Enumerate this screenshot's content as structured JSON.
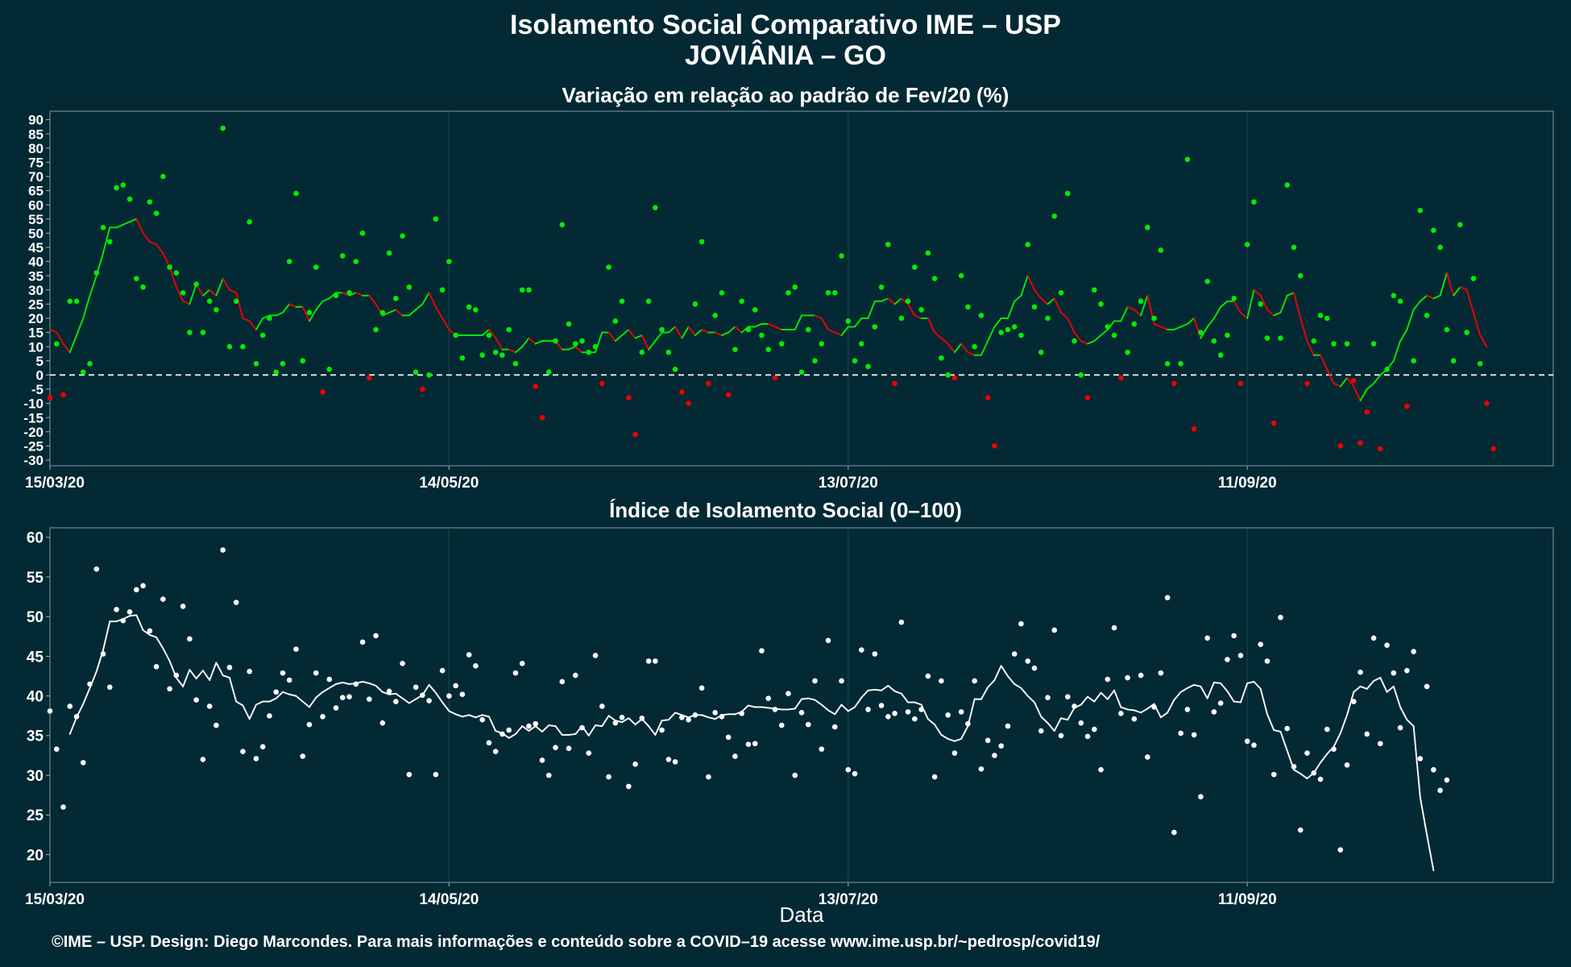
{
  "header": {
    "title": "Isolamento Social Comparativo IME – USP",
    "location": "JOVIÂNIA – GO"
  },
  "xlabel": "Data",
  "credit": "©IME – USP. Design: Diego Marcondes. Para mais informações e conteúdo sobre a COVID–19 acesse www.ime.usp.br/~pedrosp/covid19/",
  "colors": {
    "background": "#032934",
    "positive": "#00ee00",
    "negative": "#ee0000",
    "index": "#ffffff",
    "zero_line": "#ffffff"
  },
  "chart_data": [
    {
      "type": "scatter",
      "title": "Variação em relação ao padrão de Fev/20 (%)",
      "x_start": "15/03/20",
      "x_tick_labels": [
        "15/03/20",
        "14/05/20",
        "13/07/20",
        "11/09/20"
      ],
      "ylim": [
        -32,
        93
      ],
      "y_ticks": [
        -30,
        -25,
        -20,
        -15,
        -10,
        -5,
        0,
        5,
        10,
        15,
        20,
        25,
        30,
        35,
        40,
        45,
        50,
        55,
        60,
        65,
        70,
        75,
        80,
        85,
        90
      ],
      "reference_line": 0,
      "series": [
        {
          "kind": "points",
          "values": [
            -8,
            11,
            -7,
            26,
            26,
            1,
            4,
            36,
            52,
            47,
            66,
            67,
            62,
            34,
            31,
            61,
            57,
            70,
            38,
            36,
            29,
            15,
            32,
            15,
            26,
            23,
            87,
            10,
            26,
            10,
            54,
            4,
            14,
            20,
            1,
            4,
            40,
            64,
            5,
            22,
            38,
            -6,
            2,
            28,
            42,
            29,
            40,
            50,
            -1,
            16,
            22,
            43,
            27,
            49,
            31,
            1,
            -5,
            0,
            55,
            30,
            40,
            14,
            6,
            24,
            23,
            7,
            14,
            8,
            7,
            16,
            4,
            30,
            30,
            -4,
            -15,
            1,
            12,
            53,
            18,
            11,
            12,
            8,
            10,
            -3,
            38,
            19,
            26,
            -8,
            -21,
            8,
            26,
            59,
            16,
            8,
            2,
            -6,
            -10,
            25,
            47,
            -3,
            21,
            29,
            -7,
            9,
            26,
            16,
            23,
            14,
            9,
            -1,
            11,
            29,
            31,
            1,
            16,
            5,
            11,
            29,
            29,
            42,
            19,
            5,
            11,
            3,
            17,
            31,
            46,
            -3,
            20,
            26,
            38,
            23,
            43,
            34,
            6,
            0,
            -1,
            35,
            24,
            10,
            21,
            -8,
            -25,
            15,
            16,
            17,
            14,
            46,
            24,
            8,
            20,
            56,
            29,
            64,
            12,
            0,
            -8,
            30,
            25,
            17,
            14,
            -1,
            8,
            18,
            26,
            52,
            20,
            44,
            4,
            -3,
            4,
            76,
            -19,
            15,
            33,
            12,
            7,
            14,
            27,
            -3,
            46,
            61,
            25,
            13,
            -17,
            13,
            67,
            45,
            35,
            -3,
            12,
            21,
            20,
            11,
            -25,
            11,
            -2,
            -24,
            -13,
            11,
            -26,
            2,
            28,
            26,
            -11,
            5,
            58,
            21,
            51,
            45,
            16,
            5,
            53,
            15,
            34,
            4,
            -10,
            -26
          ]
        },
        {
          "kind": "line",
          "values": [
            16,
            15,
            11,
            8,
            14,
            20,
            28,
            35,
            43,
            52,
            52,
            53,
            54,
            55,
            50,
            47,
            46,
            43,
            38,
            31,
            26,
            25,
            32,
            28,
            30,
            28,
            34,
            30,
            29,
            20,
            19,
            16,
            20,
            21,
            21,
            22,
            25,
            24,
            24,
            19,
            23,
            26,
            27,
            29,
            29,
            28,
            29,
            28,
            28,
            25,
            21,
            22,
            23,
            21,
            21,
            23,
            25,
            29,
            24,
            20,
            16,
            14,
            14,
            14,
            14,
            14,
            16,
            13,
            9,
            9,
            8,
            10,
            13,
            11,
            12,
            12,
            12,
            9,
            9,
            10,
            8,
            8,
            8,
            15,
            15,
            12,
            14,
            16,
            13,
            14,
            9,
            12,
            15,
            15,
            17,
            13,
            17,
            14,
            16,
            15,
            15,
            14,
            15,
            17,
            15,
            17,
            17,
            18,
            18,
            17,
            16,
            16,
            16,
            21,
            21,
            21,
            20,
            16,
            15,
            14,
            17,
            17,
            20,
            20,
            26,
            26,
            27,
            25,
            27,
            25,
            21,
            20,
            20,
            15,
            13,
            11,
            8,
            11,
            8,
            7,
            7,
            12,
            17,
            20,
            20,
            26,
            28,
            35,
            30,
            27,
            25,
            27,
            22,
            20,
            15,
            12,
            11,
            12,
            14,
            16,
            19,
            19,
            24,
            23,
            21,
            28,
            18,
            17,
            16,
            16,
            17,
            18,
            20,
            13,
            17,
            20,
            24,
            26,
            26,
            22,
            20,
            30,
            28,
            23,
            21,
            22,
            28,
            29,
            20,
            12,
            7,
            7,
            2,
            -3,
            -4,
            -1,
            -4,
            -9,
            -5,
            -3,
            0,
            2,
            5,
            12,
            16,
            23,
            26,
            28,
            27,
            28,
            36,
            28,
            31,
            30,
            22,
            14,
            10
          ]
        }
      ]
    },
    {
      "type": "scatter",
      "title": "Índice de Isolamento Social (0–100)",
      "x_start": "15/03/20",
      "x_tick_labels": [
        "15/03/20",
        "14/05/20",
        "13/07/20",
        "11/09/20"
      ],
      "ylim": [
        16.5,
        61.2
      ],
      "y_ticks": [
        20,
        25,
        30,
        35,
        40,
        45,
        50,
        55,
        60
      ],
      "series": [
        {
          "kind": "points",
          "values": [
            38.1,
            33.3,
            26.0,
            38.7,
            37.4,
            31.6,
            41.5,
            56.0,
            45.3,
            41.1,
            50.9,
            49.5,
            50.6,
            53.4,
            53.9,
            48.2,
            43.7,
            52.2,
            40.9,
            42.6,
            51.3,
            47.2,
            39.5,
            32.0,
            38.7,
            36.3,
            58.4,
            43.6,
            51.8,
            33.0,
            43.1,
            32.1,
            33.6,
            37.5,
            40.5,
            42.9,
            42.0,
            45.9,
            32.4,
            36.4,
            42.9,
            37.4,
            42.1,
            38.5,
            39.8,
            39.9,
            41.5,
            46.8,
            39.6,
            47.6,
            36.6,
            40.6,
            39.3,
            44.1,
            30.1,
            41.1,
            40.1,
            39.4,
            30.1,
            43.2,
            40.0,
            41.3,
            40.2,
            45.2,
            43.8,
            37.0,
            34.1,
            33.0,
            35.2,
            35.7,
            42.9,
            44.1,
            36.2,
            36.5,
            31.9,
            30.0,
            33.5,
            41.8,
            33.4,
            42.6,
            36.0,
            32.8,
            45.1,
            38.7,
            29.8,
            36.6,
            37.3,
            28.6,
            31.4,
            37.2,
            44.4,
            44.4,
            35.7,
            32.0,
            31.7,
            37.3,
            37.0,
            37.6,
            41.0,
            29.8,
            37.9,
            37.4,
            34.8,
            32.4,
            37.8,
            33.9,
            34.0,
            45.7,
            39.7,
            38.3,
            36.3,
            40.3,
            30.0,
            37.9,
            36.4,
            41.9,
            33.3,
            47.0,
            36.1,
            41.9,
            30.7,
            30.2,
            45.8,
            38.3,
            45.3,
            38.8,
            37.4,
            37.8,
            49.3,
            38.0,
            37.1,
            38.3,
            42.5,
            29.8,
            41.9,
            37.6,
            32.8,
            38.0,
            36.5,
            41.9,
            30.8,
            34.4,
            32.5,
            33.7,
            36.2,
            45.3,
            49.1,
            44.4,
            43.5,
            35.6,
            39.8,
            48.3,
            35.0,
            39.9,
            38.7,
            36.6,
            34.9,
            35.8,
            30.7,
            42.1,
            48.6,
            37.8,
            42.3,
            37.1,
            42.6,
            32.3,
            38.6,
            42.9,
            52.4,
            22.8,
            35.3,
            38.3,
            35.1,
            27.3,
            47.3,
            38.0,
            39.1,
            44.6,
            47.6,
            45.1,
            34.3,
            33.8,
            46.5,
            44.4,
            30.1,
            49.9,
            35.9,
            31.1,
            23.1,
            32.8,
            30.3,
            29.5,
            35.8,
            33.3,
            20.6,
            31.3,
            39.3,
            43.0,
            35.2,
            47.3,
            34.0,
            46.4,
            42.9,
            36.0,
            43.2,
            45.6,
            32.1,
            41.2,
            30.7,
            28.1,
            29.4
          ]
        },
        {
          "kind": "line",
          "values": [
            null,
            null,
            null,
            35.2,
            37.3,
            39.0,
            41.0,
            43.1,
            45.8,
            49.4,
            49.4,
            49.7,
            50.1,
            50.2,
            48.3,
            47.7,
            47.4,
            46.0,
            44.4,
            42.3,
            41.2,
            43.3,
            42.2,
            43.2,
            42.0,
            44.2,
            42.6,
            42.3,
            39.3,
            38.8,
            37.1,
            38.9,
            39.3,
            39.3,
            39.7,
            40.5,
            40.2,
            40.0,
            39.3,
            38.6,
            39.8,
            40.5,
            41.0,
            41.5,
            41.7,
            41.5,
            41.6,
            41.8,
            41.6,
            41.3,
            40.5,
            40.2,
            40.3,
            39.7,
            39.1,
            39.6,
            40.1,
            41.4,
            40.4,
            39.2,
            38.1,
            37.7,
            37.4,
            37.6,
            37.3,
            37.6,
            37.4,
            35.6,
            35.3,
            34.7,
            35.2,
            36.2,
            35.6,
            36.2,
            35.5,
            36.3,
            36.2,
            35.1,
            35.1,
            35.2,
            36.2,
            35.0,
            36.3,
            36.2,
            37.5,
            36.9,
            36.7,
            37.2,
            36.4,
            37.1,
            36.2,
            35.1,
            36.9,
            37.0,
            37.9,
            37.6,
            37.3,
            37.6,
            37.6,
            37.3,
            37.1,
            37.6,
            37.7,
            37.7,
            38.0,
            38.8,
            38.6,
            38.6,
            38.5,
            38.4,
            38.3,
            38.3,
            38.4,
            39.6,
            39.7,
            39.5,
            38.9,
            38.2,
            37.7,
            38.9,
            38.1,
            38.6,
            39.8,
            40.7,
            40.8,
            40.7,
            41.3,
            40.6,
            40.3,
            39.2,
            39.2,
            38.9,
            37.1,
            36.4,
            35.1,
            34.6,
            34.3,
            34.6,
            36.2,
            39.6,
            39.6,
            41.1,
            42.0,
            43.8,
            42.5,
            41.5,
            41.0,
            40.0,
            39.2,
            37.4,
            36.6,
            35.6,
            37.2,
            37.0,
            38.5,
            38.9,
            39.9,
            39.3,
            40.4,
            39.6,
            40.7,
            38.6,
            38.3,
            38.2,
            37.9,
            38.4,
            39.0,
            37.3,
            37.9,
            39.5,
            40.5,
            41.0,
            41.4,
            41.2,
            39.7,
            41.7,
            41.6,
            40.6,
            39.3,
            39.2,
            41.6,
            41.8,
            40.9,
            37.7,
            35.7,
            35.5,
            33.1,
            30.7,
            30.2,
            29.6,
            30.3,
            31.6,
            32.7,
            33.6,
            35.3,
            37.6,
            40.5,
            41.2,
            40.9,
            41.9,
            42.3,
            40.5,
            41.2,
            38.6,
            37.0,
            36.2,
            27.2,
            22.5,
            18.0
          ]
        }
      ]
    }
  ]
}
